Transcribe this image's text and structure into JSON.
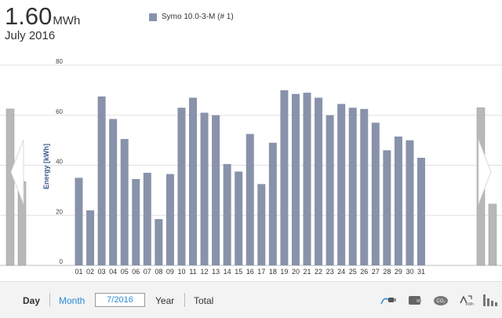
{
  "header": {
    "value": "1.60",
    "unit": "MWh",
    "period": "July 2016"
  },
  "colors": {
    "bar": "#8892ab",
    "side_bar": "#b8b8b8",
    "grid": "#e0e0e0",
    "accent": "#2a8ad6"
  },
  "chart_data": {
    "type": "bar",
    "categories": [
      "01",
      "02",
      "03",
      "04",
      "05",
      "06",
      "07",
      "08",
      "09",
      "10",
      "11",
      "12",
      "13",
      "14",
      "15",
      "16",
      "17",
      "18",
      "19",
      "20",
      "21",
      "22",
      "23",
      "24",
      "25",
      "26",
      "27",
      "28",
      "29",
      "30",
      "31"
    ],
    "series": [
      {
        "name": "Symo 10.0-3-M (# 1)",
        "values": [
          35,
          22,
          67.5,
          58.5,
          50.5,
          34.5,
          37,
          18.5,
          36.5,
          63,
          67,
          61,
          60,
          40.5,
          37.5,
          52.5,
          32.5,
          49,
          70,
          68.5,
          69,
          67,
          60,
          64.5,
          63,
          62.5,
          57,
          46,
          51.5,
          50,
          43
        ]
      }
    ],
    "ylabel": "Energy [kWh]",
    "ylim": [
      0,
      80
    ],
    "yticks": [
      "0",
      "20",
      "40",
      "60",
      "80"
    ],
    "grid": true,
    "legend_position": "top",
    "previous_period_values": [
      62.5,
      33.5
    ],
    "next_period_values": [
      63,
      24.5
    ]
  },
  "toolbar": {
    "day": "Day",
    "month": "Month",
    "date": "7/2016",
    "year": "Year",
    "total": "Total",
    "icons": [
      "energy-flow-icon",
      "wallet-icon",
      "co2-icon",
      "kwh-convert-icon",
      "bar-chart-icon"
    ]
  }
}
